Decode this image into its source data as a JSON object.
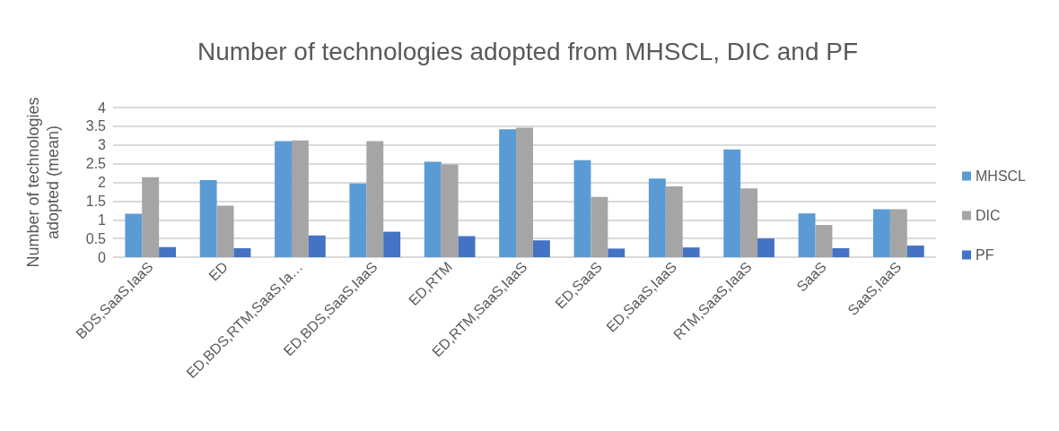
{
  "chart_data": {
    "type": "bar",
    "title": "Number of technologies adopted from MHSCL, DIC and PF",
    "ylabel": "Number of technologies adopted (mean)",
    "categories": [
      "BDS,SaaS,IaaS",
      "ED",
      "ED,BDS,RTM,SaaS,Ia…",
      "ED,BDS,SaaS,IaaS",
      "ED,RTM",
      "ED,RTM,SaaS,IaaS",
      "ED,SaaS",
      "ED,SaaS,IaaS",
      "RTM,SaaS,IaaS",
      "SaaS",
      "SaaS,IaaS"
    ],
    "series": [
      {
        "name": "MHSCL",
        "color": "#5b9bd5",
        "values": [
          1.16,
          2.06,
          3.1,
          1.97,
          2.55,
          3.42,
          2.59,
          2.1,
          2.88,
          1.17,
          1.28
        ]
      },
      {
        "name": "DIC",
        "color": "#a5a5a5",
        "values": [
          2.14,
          1.38,
          3.12,
          3.1,
          2.48,
          3.46,
          1.61,
          1.89,
          1.84,
          0.86,
          1.28
        ]
      },
      {
        "name": "PF",
        "color": "#4472c4",
        "values": [
          0.27,
          0.24,
          0.58,
          0.68,
          0.56,
          0.45,
          0.23,
          0.26,
          0.5,
          0.24,
          0.31
        ]
      }
    ],
    "ylim": [
      0,
      4
    ],
    "yticks": [
      0,
      0.5,
      1,
      1.5,
      2,
      2.5,
      3,
      3.5,
      4
    ],
    "grid": "y",
    "legend": "right"
  }
}
